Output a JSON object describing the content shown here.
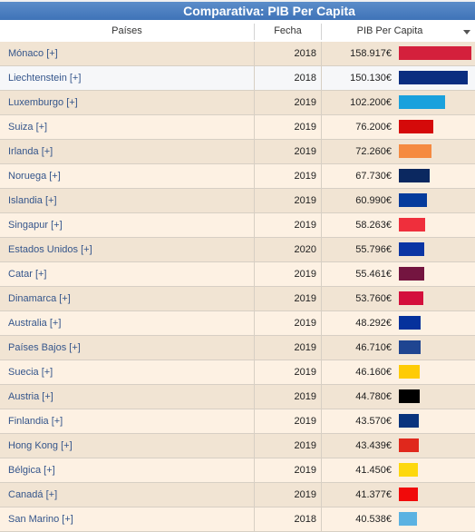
{
  "title": "Comparativa: PIB Per Capita",
  "columns": {
    "country": "Países",
    "year": "Fecha",
    "gdp": "PIB Per Capita"
  },
  "rows": [
    {
      "country": "Mónaco [+]",
      "year": "2018",
      "gdp": "158.917€",
      "value": 158917,
      "color": "#d4203c"
    },
    {
      "country": "Liechtenstein [+]",
      "year": "2018",
      "gdp": "150.130€",
      "value": 150130,
      "color": "#0a2d80"
    },
    {
      "country": "Luxemburgo [+]",
      "year": "2019",
      "gdp": "102.200€",
      "value": 102200,
      "color": "#1aa1dd"
    },
    {
      "country": "Suiza [+]",
      "year": "2019",
      "gdp": "76.200€",
      "value": 76200,
      "color": "#d50a0a"
    },
    {
      "country": "Irlanda [+]",
      "year": "2019",
      "gdp": "72.260€",
      "value": 72260,
      "color": "#f58a40"
    },
    {
      "country": "Noruega [+]",
      "year": "2019",
      "gdp": "67.730€",
      "value": 67730,
      "color": "#0b2860"
    },
    {
      "country": "Islandia [+]",
      "year": "2019",
      "gdp": "60.990€",
      "value": 60990,
      "color": "#053b9c"
    },
    {
      "country": "Singapur [+]",
      "year": "2019",
      "gdp": "58.263€",
      "value": 58263,
      "color": "#ef2f3c"
    },
    {
      "country": "Estados Unidos [+]",
      "year": "2020",
      "gdp": "55.796€",
      "value": 55796,
      "color": "#0a35a4"
    },
    {
      "country": "Catar [+]",
      "year": "2019",
      "gdp": "55.461€",
      "value": 55461,
      "color": "#741540"
    },
    {
      "country": "Dinamarca [+]",
      "year": "2019",
      "gdp": "53.760€",
      "value": 53760,
      "color": "#d40f3c"
    },
    {
      "country": "Australia [+]",
      "year": "2019",
      "gdp": "48.292€",
      "value": 48292,
      "color": "#05319c"
    },
    {
      "country": "Países Bajos [+]",
      "year": "2019",
      "gdp": "46.710€",
      "value": 46710,
      "color": "#1f4591"
    },
    {
      "country": "Suecia [+]",
      "year": "2019",
      "gdp": "46.160€",
      "value": 46160,
      "color": "#fecb05"
    },
    {
      "country": "Austria [+]",
      "year": "2019",
      "gdp": "44.780€",
      "value": 44780,
      "color": "#000000"
    },
    {
      "country": "Finlandia [+]",
      "year": "2019",
      "gdp": "43.570€",
      "value": 43570,
      "color": "#0a357d"
    },
    {
      "country": "Hong Kong [+]",
      "year": "2019",
      "gdp": "43.439€",
      "value": 43439,
      "color": "#e0281c"
    },
    {
      "country": "Bélgica [+]",
      "year": "2019",
      "gdp": "41.450€",
      "value": 41450,
      "color": "#fdd80d"
    },
    {
      "country": "Canadá [+]",
      "year": "2019",
      "gdp": "41.377€",
      "value": 41377,
      "color": "#f10a0a"
    },
    {
      "country": "San Marino [+]",
      "year": "2018",
      "gdp": "40.538€",
      "value": 40538,
      "color": "#5bb2e2"
    }
  ],
  "selected_row": 1,
  "sort_icon": "sort-desc-icon"
}
